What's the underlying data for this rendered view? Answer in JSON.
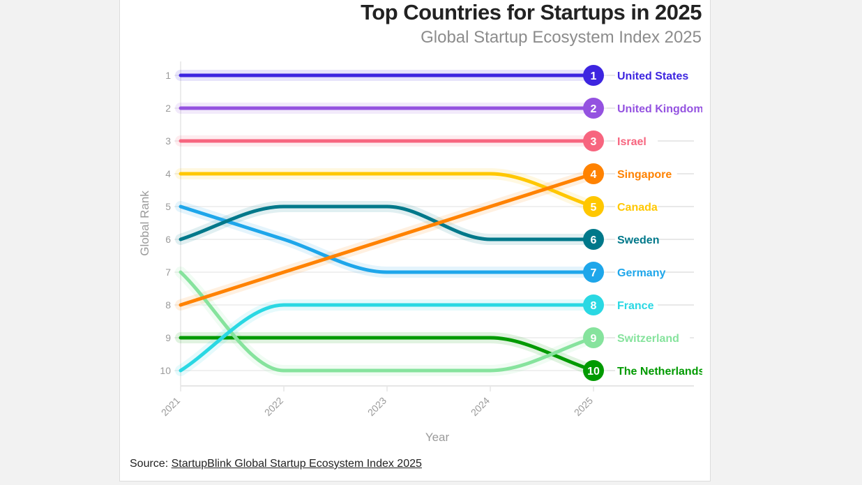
{
  "header": {
    "title": "Top Countries for Startups in 2025",
    "subtitle": "Global Startup Ecosystem Index 2025"
  },
  "footer": {
    "source_prefix": "Source: ",
    "source_link": "StartupBlink Global Startup Ecosystem Index 2025"
  },
  "chart_data": {
    "type": "line",
    "title": "Top Countries for Startups in 2025",
    "subtitle": "Global Startup Ecosystem Index 2025",
    "xlabel": "Year",
    "ylabel": "Global Rank",
    "x": [
      "2021",
      "2022",
      "2023",
      "2024",
      "2025"
    ],
    "yticks": [
      1,
      2,
      3,
      4,
      5,
      6,
      7,
      8,
      9,
      10
    ],
    "ylim": [
      1,
      10
    ],
    "y_inverted": true,
    "grid": true,
    "legend": "right-end-labels",
    "series": [
      {
        "name": "United States",
        "color": "#3d25e0",
        "values": [
          1,
          1,
          1,
          1,
          1
        ],
        "end_rank": "1"
      },
      {
        "name": "United Kingdom",
        "color": "#9452e0",
        "values": [
          2,
          2,
          2,
          2,
          2
        ],
        "end_rank": "2"
      },
      {
        "name": "Israel",
        "color": "#f7657f",
        "values": [
          3,
          3,
          3,
          3,
          3
        ],
        "end_rank": "3"
      },
      {
        "name": "Singapore",
        "color": "#ff8200",
        "values": [
          8,
          7,
          6,
          5,
          4
        ],
        "end_rank": "4"
      },
      {
        "name": "Canada",
        "color": "#ffc700",
        "values": [
          4,
          4,
          4,
          4,
          5
        ],
        "end_rank": "5"
      },
      {
        "name": "Sweden",
        "color": "#00788a",
        "values": [
          6,
          5,
          5,
          6,
          6
        ],
        "end_rank": "6"
      },
      {
        "name": "Germany",
        "color": "#1ea6ea",
        "values": [
          5,
          6,
          7,
          7,
          7
        ],
        "end_rank": "7"
      },
      {
        "name": "France",
        "color": "#2ad8e3",
        "values": [
          10,
          8,
          8,
          8,
          8
        ],
        "end_rank": "8"
      },
      {
        "name": "Switzerland",
        "color": "#86e39d",
        "values": [
          7,
          10,
          10,
          10,
          9
        ],
        "end_rank": "9"
      },
      {
        "name": "The Netherlands",
        "color": "#009a00",
        "values": [
          9,
          9,
          9,
          9,
          10
        ],
        "end_rank": "10"
      }
    ]
  }
}
